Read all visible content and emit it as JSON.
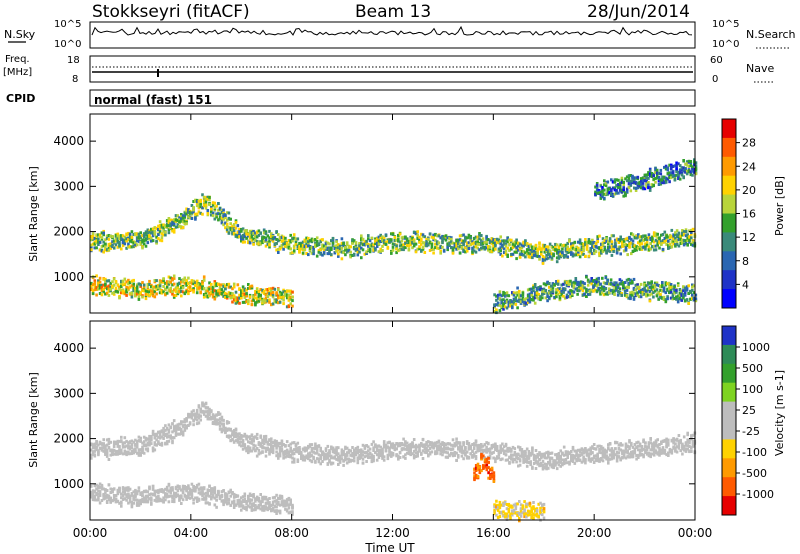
{
  "header": {
    "station": "Stokkseyri (fitACF)",
    "beam": "Beam 13",
    "date": "28/Jun/2014"
  },
  "strip_noise": {
    "left_label": "N.Sky",
    "left_ticks": [
      "10^5",
      "10^0"
    ],
    "right_ticks": [
      "10^5",
      "10^0"
    ],
    "right_label": "N.Search"
  },
  "strip_freq": {
    "left_label_top": "Freq.",
    "left_label_bottom": "[MHz]",
    "left_ticks": [
      "18",
      "8"
    ],
    "right_ticks": [
      "60",
      "0"
    ],
    "right_label": "Nave"
  },
  "strip_cpid": {
    "label": "CPID",
    "mode_text": "normal (fast) 151"
  },
  "colors": {
    "noise_line": "#000000",
    "scatter_blue": "#1f33c7",
    "scatter_green": "#2e8b57",
    "scatter_orange": "#ff8c00",
    "scatter_red": "#e60000",
    "ground_grey": "#bdbdbd"
  },
  "chart_data": [
    {
      "type": "heatmap",
      "panel": "power",
      "ylabel": "Slant Range [km]",
      "xlabel": "Time UT",
      "x_ticks": [
        "00:00",
        "04:00",
        "08:00",
        "12:00",
        "16:00",
        "20:00",
        "00:00"
      ],
      "xlim_hours": [
        0,
        24
      ],
      "y_ticks": [
        1000,
        2000,
        3000,
        4000
      ],
      "ylim": [
        200,
        4600
      ],
      "colorbar": {
        "label": "Power [dB]",
        "ticks": [
          "28",
          "24",
          "20",
          "16",
          "12",
          "8",
          "4"
        ],
        "range": [
          0,
          30
        ],
        "colors": [
          "#0000ff",
          "#1f33c7",
          "#2a66b2",
          "#3a8a7a",
          "#33a02c",
          "#b8d43a",
          "#ffd200",
          "#ff9a00",
          "#ff5a00",
          "#e60000"
        ]
      },
      "bands": [
        {
          "name": "main band",
          "times": [
            0,
            2,
            3.5,
            4.5,
            6,
            8,
            10,
            12,
            14,
            16,
            18,
            20,
            22,
            24
          ],
          "range_km": [
            1750,
            1800,
            2200,
            2650,
            1900,
            1700,
            1600,
            1750,
            1750,
            1700,
            1500,
            1650,
            1750,
            1900
          ],
          "power_db": 14
        },
        {
          "name": "upper band",
          "times": [
            20,
            21,
            22,
            23,
            24
          ],
          "range_km": [
            2900,
            3000,
            3100,
            3300,
            3400
          ],
          "power_db": 9
        },
        {
          "name": "near range",
          "times": [
            0,
            2,
            4,
            6,
            8
          ],
          "range_km": [
            800,
            700,
            800,
            600,
            500
          ],
          "power_db": 18
        },
        {
          "name": "near range late",
          "times": [
            16,
            18,
            20,
            22,
            24
          ],
          "range_km": [
            400,
            650,
            800,
            700,
            600
          ],
          "power_db": 12
        }
      ]
    },
    {
      "type": "heatmap",
      "panel": "velocity",
      "ylabel": "Slant Range [km]",
      "xlabel": "Time UT",
      "x_ticks": [
        "00:00",
        "04:00",
        "08:00",
        "12:00",
        "16:00",
        "20:00",
        "00:00"
      ],
      "xlim_hours": [
        0,
        24
      ],
      "y_ticks": [
        1000,
        2000,
        3000,
        4000
      ],
      "ylim": [
        200,
        4600
      ],
      "colorbar": {
        "label": "Velocity [m s-1]",
        "ticks": [
          "1000",
          "500",
          "100",
          "25",
          "-25",
          "-100",
          "-500",
          "-1000"
        ],
        "range": [
          -1200,
          1200
        ],
        "colors": [
          "#e60000",
          "#ff5a00",
          "#ff9a00",
          "#ffd200",
          "#bdbdbd",
          "#bdbdbd",
          "#7ed321",
          "#33a02c",
          "#2e8b57",
          "#1f33c7"
        ]
      },
      "bands": [
        {
          "name": "main band (ground scatter)",
          "times": [
            0,
            2,
            3.5,
            4.5,
            6,
            8,
            10,
            12,
            14,
            16,
            18,
            20,
            22,
            24
          ],
          "range_km": [
            1750,
            1800,
            2200,
            2650,
            1900,
            1700,
            1600,
            1750,
            1750,
            1700,
            1500,
            1650,
            1750,
            1900
          ],
          "velocity": 0
        },
        {
          "name": "evening red cluster",
          "times": [
            15.2,
            15.6,
            16
          ],
          "range_km": [
            1200,
            1500,
            1100
          ],
          "velocity": -800
        },
        {
          "name": "near-range green",
          "times": [
            0,
            2,
            4,
            6,
            8
          ],
          "range_km": [
            800,
            700,
            800,
            600,
            500
          ],
          "velocity": 150
        },
        {
          "name": "late orange strip",
          "times": [
            16,
            17,
            18
          ],
          "range_km": [
            400,
            400,
            400
          ],
          "velocity": -300
        }
      ]
    }
  ]
}
